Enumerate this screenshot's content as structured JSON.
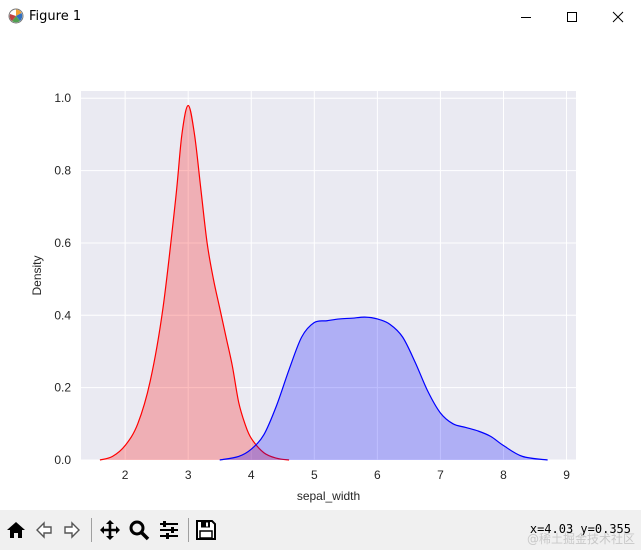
{
  "window": {
    "title": "Figure 1",
    "controls": [
      "minimize",
      "maximize",
      "close"
    ]
  },
  "toolbar": {
    "buttons": [
      {
        "name": "home",
        "icon": "home-icon"
      },
      {
        "name": "back",
        "icon": "back-arrow-icon"
      },
      {
        "name": "forward",
        "icon": "forward-arrow-icon"
      },
      {
        "name": "pan",
        "icon": "move-icon"
      },
      {
        "name": "zoom",
        "icon": "magnifier-icon"
      },
      {
        "name": "configure-subplots",
        "icon": "sliders-icon"
      },
      {
        "name": "save",
        "icon": "floppy-disk-icon"
      }
    ],
    "coordinates": "x=4.03 y=0.355"
  },
  "watermark": "@稀土掘金技术社区",
  "chart_data": {
    "type": "area",
    "title": "",
    "xlabel": "sepal_width",
    "ylabel": "Density",
    "xlim": [
      1.3,
      9.15
    ],
    "ylim": [
      0,
      1.02
    ],
    "xticks": [
      "2",
      "3",
      "4",
      "5",
      "6",
      "7",
      "8",
      "9"
    ],
    "yticks": [
      "0.0",
      "0.2",
      "0.4",
      "0.6",
      "0.8",
      "1.0"
    ],
    "grid": true,
    "background": "#eaeaf2",
    "series": [
      {
        "color": "#ff0000",
        "fill": "#ff0000",
        "x": [
          1.6,
          1.8,
          2.0,
          2.2,
          2.4,
          2.6,
          2.8,
          2.9,
          3.0,
          3.1,
          3.2,
          3.3,
          3.4,
          3.5,
          3.6,
          3.7,
          3.8,
          3.9,
          4.0,
          4.2,
          4.4,
          4.6
        ],
        "y": [
          0.0,
          0.01,
          0.04,
          0.1,
          0.22,
          0.42,
          0.72,
          0.9,
          0.98,
          0.9,
          0.75,
          0.6,
          0.5,
          0.42,
          0.34,
          0.26,
          0.16,
          0.1,
          0.06,
          0.02,
          0.005,
          0.0
        ]
      },
      {
        "color": "#0000ff",
        "fill": "#0000ff",
        "x": [
          3.5,
          3.8,
          4.0,
          4.2,
          4.4,
          4.6,
          4.8,
          5.0,
          5.2,
          5.4,
          5.6,
          5.8,
          6.0,
          6.2,
          6.4,
          6.6,
          6.8,
          7.0,
          7.2,
          7.4,
          7.6,
          7.8,
          8.0,
          8.3,
          8.7
        ],
        "y": [
          0.0,
          0.01,
          0.03,
          0.07,
          0.15,
          0.25,
          0.34,
          0.38,
          0.385,
          0.39,
          0.392,
          0.395,
          0.39,
          0.375,
          0.34,
          0.27,
          0.19,
          0.13,
          0.1,
          0.09,
          0.08,
          0.065,
          0.04,
          0.01,
          0.0
        ]
      }
    ]
  }
}
